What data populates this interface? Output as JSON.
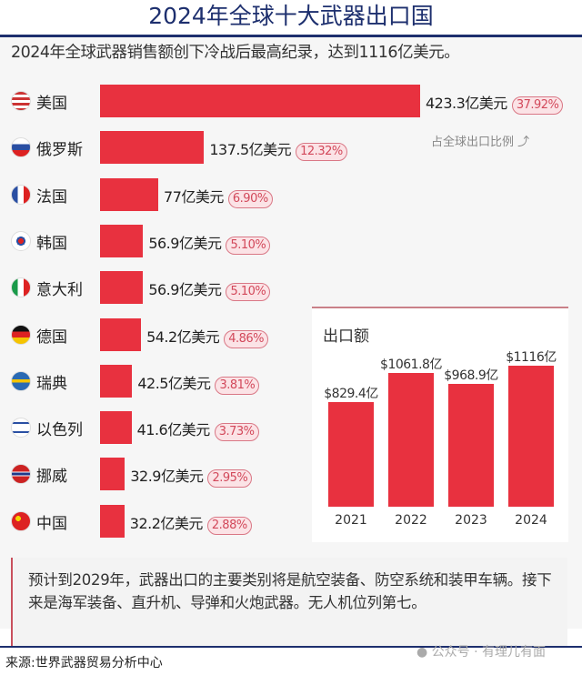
{
  "title": "2024年全球十大武器出口国",
  "subtitle": "2024年全球武器销售额创下冷战后最高纪录，达到1116亿美元。",
  "share_note": "占全球出口比例",
  "colors": {
    "bar": "#e8313f",
    "title": "#1d2f6e"
  },
  "chart_data": [
    {
      "type": "bar",
      "orientation": "horizontal",
      "unit": "亿美元",
      "categories": [
        "美国",
        "俄罗斯",
        "法国",
        "韩国",
        "意大利",
        "德国",
        "瑞典",
        "以色列",
        "挪威",
        "中国"
      ],
      "values": [
        423.3,
        137.5,
        77,
        56.9,
        56.9,
        54.2,
        42.5,
        41.6,
        32.9,
        32.2
      ],
      "value_labels": [
        "423.3亿美元",
        "137.5亿美元",
        "77亿美元",
        "56.9亿美元",
        "56.9亿美元",
        "54.2亿美元",
        "42.5亿美元",
        "41.6亿美元",
        "32.9亿美元",
        "32.2亿美元"
      ],
      "share_labels": [
        "37.92%",
        "12.32%",
        "6.90%",
        "5.10%",
        "5.10%",
        "4.86%",
        "3.81%",
        "3.73%",
        "2.95%",
        "2.88%"
      ],
      "flags": [
        "us-flag-icon",
        "russia-flag-icon",
        "france-flag-icon",
        "korea-flag-icon",
        "italy-flag-icon",
        "germany-flag-icon",
        "sweden-flag-icon",
        "israel-flag-icon",
        "norway-flag-icon",
        "china-flag-icon"
      ]
    },
    {
      "type": "bar",
      "title": "出口额",
      "categories": [
        "2021",
        "2022",
        "2023",
        "2024"
      ],
      "values": [
        829.4,
        1061.8,
        968.9,
        1116
      ],
      "value_labels": [
        "$829.4亿",
        "$1061.8亿",
        "$968.9亿",
        "$1116亿"
      ]
    }
  ],
  "note": "预计到2029年，武器出口的主要类别将是航空装备、防空系统和装甲车辆。接下来是海军装备、直升机、导弹和火炮武器。无人机位列第七。",
  "source": "来源:世界武器贸易分析中心",
  "watermark": "公众号 · 有理儿有面"
}
